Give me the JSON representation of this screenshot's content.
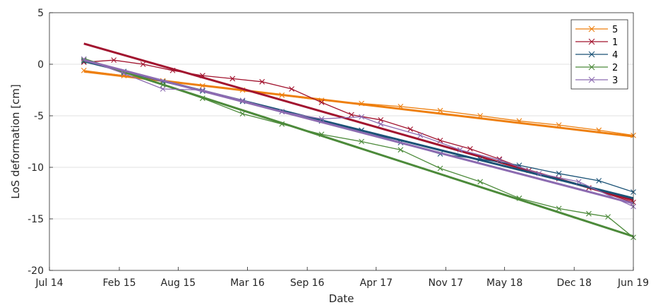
{
  "chart_data": {
    "type": "line",
    "xlabel": "Date",
    "ylabel": "LoS deformation [cm]",
    "xlim": [
      "2014-07",
      "2019-06"
    ],
    "ylim": [
      -20,
      5
    ],
    "x_ticks": [
      {
        "date": "2014-07",
        "label": "Jul 14"
      },
      {
        "date": "2015-02",
        "label": "Feb 15"
      },
      {
        "date": "2015-08",
        "label": "Aug 15"
      },
      {
        "date": "2016-03",
        "label": "Mar 16"
      },
      {
        "date": "2016-09",
        "label": "Sep 16"
      },
      {
        "date": "2017-04",
        "label": "Apr 17"
      },
      {
        "date": "2017-11",
        "label": "Nov 17"
      },
      {
        "date": "2018-05",
        "label": "May 18"
      },
      {
        "date": "2018-12",
        "label": "Dec 18"
      },
      {
        "date": "2019-06",
        "label": "Jun 19"
      }
    ],
    "y_ticks": [
      5,
      0,
      -5,
      -10,
      -15,
      -20
    ],
    "grid": "horizontal",
    "legend_position": "top-right",
    "series": [
      {
        "name": "5",
        "color": "#EE7F0E",
        "trend": [
          [
            "2014-10-15",
            -0.7
          ],
          [
            "2019-06-01",
            -7.0
          ]
        ],
        "values": [
          [
            "2014-10-15",
            -0.6
          ],
          [
            "2015-02-15",
            -1.1
          ],
          [
            "2015-06-15",
            -1.6
          ],
          [
            "2015-10-15",
            -2.1
          ],
          [
            "2016-02-15",
            -2.5
          ],
          [
            "2016-06-15",
            -3.0
          ],
          [
            "2016-10-15",
            -3.5
          ],
          [
            "2017-02-15",
            -3.8
          ],
          [
            "2017-06-15",
            -4.1
          ],
          [
            "2017-10-15",
            -4.5
          ],
          [
            "2018-02-15",
            -5.0
          ],
          [
            "2018-06-15",
            -5.5
          ],
          [
            "2018-10-15",
            -5.9
          ],
          [
            "2019-02-15",
            -6.4
          ],
          [
            "2019-06-01",
            -6.9
          ]
        ]
      },
      {
        "name": "1",
        "color": "#A2142F",
        "trend": [
          [
            "2014-10-15",
            2.0
          ],
          [
            "2019-06-01",
            -13.2
          ]
        ],
        "values": [
          [
            "2014-10-15",
            0.2
          ],
          [
            "2015-01-15",
            0.4
          ],
          [
            "2015-04-15",
            0.0
          ],
          [
            "2015-07-15",
            -0.6
          ],
          [
            "2015-10-15",
            -1.1
          ],
          [
            "2016-01-15",
            -1.4
          ],
          [
            "2016-04-15",
            -1.7
          ],
          [
            "2016-07-15",
            -2.4
          ],
          [
            "2016-10-15",
            -3.7
          ],
          [
            "2017-01-15",
            -4.9
          ],
          [
            "2017-04-15",
            -5.4
          ],
          [
            "2017-07-15",
            -6.3
          ],
          [
            "2017-10-15",
            -7.4
          ],
          [
            "2018-01-15",
            -8.2
          ],
          [
            "2018-04-15",
            -9.2
          ],
          [
            "2018-07-15",
            -10.3
          ],
          [
            "2018-10-15",
            -11.1
          ],
          [
            "2019-01-15",
            -12.0
          ],
          [
            "2019-06-01",
            -13.4
          ]
        ]
      },
      {
        "name": "4",
        "color": "#1A5276",
        "trend": [
          [
            "2014-10-15",
            0.3
          ],
          [
            "2019-06-01",
            -13.0
          ]
        ],
        "values": [
          [
            "2014-10-15",
            0.3
          ],
          [
            "2015-02-15",
            -0.7
          ],
          [
            "2015-06-15",
            -1.7
          ],
          [
            "2015-10-15",
            -2.6
          ],
          [
            "2016-02-15",
            -3.6
          ],
          [
            "2016-06-15",
            -4.6
          ],
          [
            "2016-10-15",
            -5.5
          ],
          [
            "2017-02-15",
            -6.4
          ],
          [
            "2017-06-15",
            -7.6
          ],
          [
            "2017-10-15",
            -8.7
          ],
          [
            "2018-02-15",
            -9.2
          ],
          [
            "2018-06-15",
            -9.8
          ],
          [
            "2018-10-15",
            -10.6
          ],
          [
            "2019-02-15",
            -11.3
          ],
          [
            "2019-06-01",
            -12.4
          ]
        ]
      },
      {
        "name": "2",
        "color": "#4C8A3A",
        "trend": [
          [
            "2014-10-15",
            0.5
          ],
          [
            "2019-06-01",
            -16.7
          ]
        ],
        "values": [
          [
            "2014-10-15",
            0.4
          ],
          [
            "2015-02-15",
            -0.8
          ],
          [
            "2015-06-15",
            -2.0
          ],
          [
            "2015-10-15",
            -3.3
          ],
          [
            "2016-02-15",
            -4.8
          ],
          [
            "2016-06-15",
            -5.8
          ],
          [
            "2016-10-15",
            -6.8
          ],
          [
            "2017-02-15",
            -7.5
          ],
          [
            "2017-06-15",
            -8.3
          ],
          [
            "2017-10-15",
            -10.1
          ],
          [
            "2018-02-15",
            -11.4
          ],
          [
            "2018-06-15",
            -13.0
          ],
          [
            "2018-10-15",
            -14.0
          ],
          [
            "2019-01-15",
            -14.5
          ],
          [
            "2019-03-15",
            -14.8
          ],
          [
            "2019-06-01",
            -16.8
          ]
        ]
      },
      {
        "name": "3",
        "color": "#8C6BB1",
        "trend": [
          [
            "2014-10-15",
            0.4
          ],
          [
            "2019-06-01",
            -13.5
          ]
        ],
        "values": [
          [
            "2014-10-15",
            0.5
          ],
          [
            "2015-02-15",
            -0.9
          ],
          [
            "2015-06-15",
            -2.4
          ],
          [
            "2015-10-15",
            -2.5
          ],
          [
            "2016-02-15",
            -3.5
          ],
          [
            "2016-06-15",
            -4.6
          ],
          [
            "2016-10-15",
            -5.3
          ],
          [
            "2017-02-15",
            -5.1
          ],
          [
            "2017-04-15",
            -5.8
          ],
          [
            "2017-08-15",
            -6.9
          ],
          [
            "2017-12-15",
            -8.3
          ],
          [
            "2018-04-15",
            -9.3
          ],
          [
            "2018-08-15",
            -10.6
          ],
          [
            "2018-12-15",
            -11.4
          ],
          [
            "2019-06-01",
            -13.8
          ]
        ]
      }
    ]
  }
}
